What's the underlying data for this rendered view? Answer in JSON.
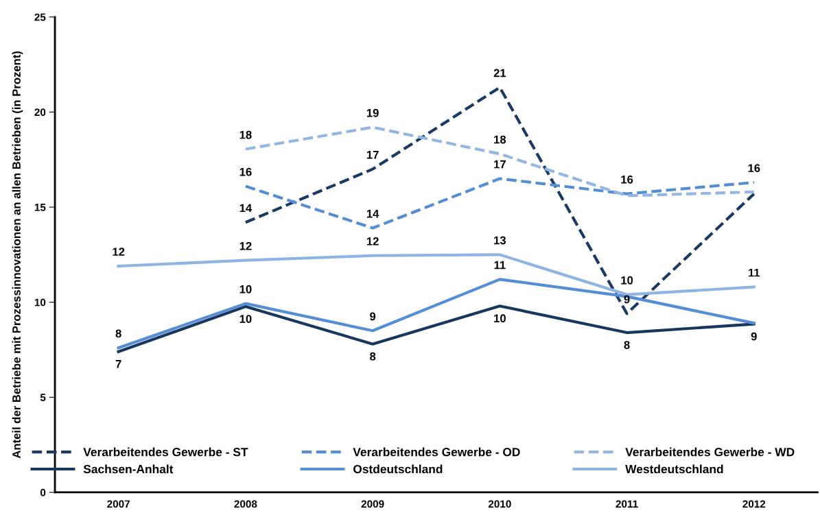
{
  "chart_data": {
    "type": "line",
    "ylabel": "Anteil der Betriebe mit Prozessinnovationen an allen Betrieben (in Prozent)",
    "categories": [
      "2007",
      "2008",
      "2009",
      "2010",
      "2011",
      "2012"
    ],
    "ylim": [
      0,
      25
    ],
    "yticks": [
      0,
      5,
      10,
      15,
      20,
      25
    ],
    "grid": false,
    "legend": "bottom",
    "marker": "none",
    "series": [
      {
        "name": "Verarbeitendes Gewerbe - ST",
        "color": "#1a3a63",
        "line_style": "dashed",
        "values": [
          null,
          14.2,
          17.0,
          21.3,
          9.4,
          15.7
        ],
        "value_labels": [
          null,
          "14",
          "17",
          "21",
          "9",
          null
        ]
      },
      {
        "name": "Verarbeitendes Gewerbe - OD",
        "color": "#558ed5",
        "line_style": "dashed",
        "values": [
          null,
          16.1,
          13.9,
          16.5,
          15.7,
          16.3
        ],
        "value_labels": [
          null,
          "16",
          "14",
          "17",
          "16",
          "16"
        ]
      },
      {
        "name": "Verarbeitendes Gewerbe - WD",
        "color": "#93b6e2",
        "line_style": "dashed",
        "values": [
          null,
          18.05,
          19.2,
          17.8,
          15.6,
          15.8
        ],
        "value_labels": [
          null,
          "18",
          "19",
          "18",
          null,
          null
        ]
      },
      {
        "name": "Sachsen-Anhalt",
        "color": "#17375e",
        "line_style": "solid",
        "values": [
          7.4,
          9.77,
          7.8,
          9.8,
          8.4,
          8.85
        ],
        "value_labels": [
          "7",
          "10",
          "8",
          "10",
          "8",
          "9"
        ]
      },
      {
        "name": "Ostdeutschland",
        "color": "#558ed5",
        "line_style": "solid",
        "values": [
          7.6,
          9.93,
          8.5,
          11.2,
          10.3,
          8.9
        ],
        "value_labels": [
          "8",
          "10",
          "9",
          "11",
          null,
          null
        ]
      },
      {
        "name": "Westdeutschland",
        "color": "#8eb4e3",
        "line_style": "solid",
        "values": [
          11.9,
          12.2,
          12.45,
          12.5,
          10.4,
          10.8
        ],
        "value_labels": [
          "12",
          "12",
          "12",
          "13",
          "10",
          "11"
        ]
      }
    ]
  }
}
